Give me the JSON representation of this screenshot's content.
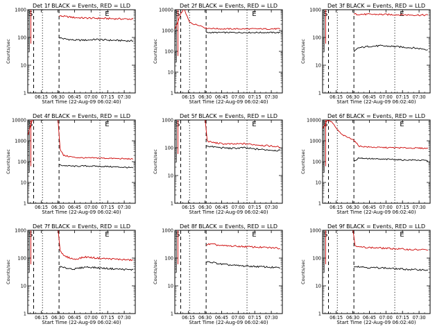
{
  "figure": {
    "colors": {
      "events": "#000000",
      "lld": "#cc0000",
      "axes": "#000000"
    }
  },
  "chart_data": [
    {
      "type": "line",
      "title": "Det 1f BLACK = Events, RED = LLD",
      "ylabel": "Counts/sec",
      "xlabel": "Start Time (22-Aug-09 06:02:40)",
      "xlim": [
        "06:02:40",
        "07:40:00"
      ],
      "ylim": [
        1,
        1000
      ],
      "yscale": "log",
      "xtick_labels": [
        "06:15",
        "06:30",
        "06:45",
        "07:00",
        "07:15",
        "07:30"
      ],
      "ytick_labels": [
        "1",
        "10",
        "100",
        "1000"
      ],
      "markers": {
        "s_label": "S",
        "e_label": "E"
      },
      "series": [
        {
          "role": "events",
          "x": [
            "06:31:00",
            "06:35:00",
            "06:45:00",
            "06:55:00",
            "07:05:00",
            "07:15:00",
            "07:25:00",
            "07:35:00",
            "07:38:00"
          ],
          "y": [
            100,
            90,
            80,
            80,
            85,
            80,
            78,
            75,
            75
          ]
        },
        {
          "role": "lld",
          "x": [
            "06:31:00",
            "06:35:00",
            "06:45:00",
            "06:55:00",
            "07:05:00",
            "07:15:00",
            "07:25:00",
            "07:35:00",
            "07:38:00"
          ],
          "y": [
            600,
            580,
            520,
            500,
            490,
            480,
            470,
            460,
            460
          ]
        }
      ]
    },
    {
      "type": "line",
      "title": "Det 2f BLACK = Events, RED = LLD",
      "ylabel": "Counts/sec",
      "xlabel": "Start Time (22-Aug-09 06:02:40)",
      "xlim": [
        "06:02:40",
        "07:40:00"
      ],
      "ylim": [
        1,
        10000
      ],
      "yscale": "log",
      "xtick_labels": [
        "06:15",
        "06:30",
        "06:45",
        "07:00",
        "07:15",
        "07:30"
      ],
      "ytick_labels": [
        "1",
        "10",
        "100",
        "1000",
        "10000"
      ],
      "markers": {
        "s_label": "S",
        "e_label": "E"
      },
      "series": [
        {
          "role": "events",
          "x": [
            "06:31:00",
            "06:45:00",
            "07:00:00",
            "07:15:00",
            "07:30:00",
            "07:38:00"
          ],
          "y": [
            800,
            800,
            800,
            800,
            800,
            800
          ]
        },
        {
          "role": "lld",
          "x": [
            "06:03:00",
            "06:08:00",
            "06:11:00",
            "06:13:00",
            "06:16:00",
            "06:20:00",
            "06:25:00",
            "06:31:00",
            "06:45:00",
            "07:00:00",
            "07:15:00",
            "07:30:00",
            "07:38:00"
          ],
          "y": [
            1200,
            6000,
            12000,
            6000,
            2500,
            2000,
            1800,
            1300,
            1200,
            1200,
            1200,
            1200,
            1200
          ]
        }
      ]
    },
    {
      "type": "line",
      "title": "Det 3f BLACK = Events, RED = LLD",
      "ylabel": "Counts/sec",
      "xlabel": "Start Time (22-Aug-09 06:02:40)",
      "xlim": [
        "06:02:40",
        "07:40:00"
      ],
      "ylim": [
        1,
        1000
      ],
      "yscale": "log",
      "xtick_labels": [
        "06:15",
        "06:30",
        "06:45",
        "07:00",
        "07:15",
        "07:30"
      ],
      "ytick_labels": [
        "1",
        "10",
        "100",
        "1000"
      ],
      "markers": {
        "s_label": "S",
        "e_label": "E"
      },
      "series": [
        {
          "role": "events",
          "x": [
            "06:31:00",
            "06:35:00",
            "06:45:00",
            "06:55:00",
            "07:05:00",
            "07:15:00",
            "07:25:00",
            "07:35:00",
            "07:38:00"
          ],
          "y": [
            30,
            42,
            48,
            50,
            48,
            45,
            42,
            38,
            36
          ]
        },
        {
          "role": "lld",
          "x": [
            "06:31:00",
            "06:40:00",
            "06:50:00",
            "07:00:00",
            "07:10:00",
            "07:20:00",
            "07:30:00",
            "07:38:00"
          ],
          "y": [
            700,
            680,
            680,
            670,
            660,
            650,
            640,
            640
          ]
        }
      ]
    },
    {
      "type": "line",
      "title": "Det 4f BLACK = Events, RED = LLD",
      "ylabel": "Counts/sec",
      "xlabel": "Start Time (22-Aug-09 06:02:40)",
      "xlim": [
        "06:02:40",
        "07:40:00"
      ],
      "ylim": [
        1,
        10000
      ],
      "yscale": "log",
      "xtick_labels": [
        "06:15",
        "06:30",
        "06:45",
        "07:00",
        "07:15",
        "07:30"
      ],
      "ytick_labels": [
        "1",
        "10",
        "100",
        "1000",
        "10000"
      ],
      "markers": {
        "s_label": "S",
        "e_label": "E"
      },
      "series": [
        {
          "role": "events",
          "x": [
            "06:31:00",
            "06:35:00",
            "06:45:00",
            "06:55:00",
            "07:05:00",
            "07:15:00",
            "07:25:00",
            "07:35:00",
            "07:38:00"
          ],
          "y": [
            70,
            65,
            60,
            62,
            60,
            58,
            55,
            52,
            50
          ]
        },
        {
          "role": "lld",
          "x": [
            "06:03:00",
            "06:06:00",
            "06:09:00",
            "06:30:00",
            "06:32:00",
            "06:35:00",
            "06:45:00",
            "06:55:00",
            "07:05:00",
            "07:15:00",
            "07:25:00",
            "07:35:00",
            "07:38:00"
          ],
          "y": [
            2000,
            8000,
            12000,
            12000,
            400,
            200,
            160,
            150,
            150,
            145,
            140,
            135,
            130
          ]
        }
      ]
    },
    {
      "type": "line",
      "title": "Det 5f BLACK = Events, RED = LLD",
      "ylabel": "Counts/sec",
      "xlabel": "Start Time (22-Aug-09 06:02:40)",
      "xlim": [
        "06:02:40",
        "07:40:00"
      ],
      "ylim": [
        1,
        1000
      ],
      "yscale": "log",
      "xtick_labels": [
        "06:15",
        "06:30",
        "06:45",
        "07:00",
        "07:15",
        "07:30"
      ],
      "ytick_labels": [
        "1",
        "10",
        "100",
        "1000"
      ],
      "markers": {
        "s_label": "S",
        "e_label": "E"
      },
      "series": [
        {
          "role": "events",
          "x": [
            "06:31:00",
            "06:35:00",
            "06:45:00",
            "06:55:00",
            "07:05:00",
            "07:15:00",
            "07:25:00",
            "07:35:00",
            "07:38:00"
          ],
          "y": [
            120,
            110,
            100,
            95,
            100,
            90,
            85,
            80,
            80
          ]
        },
        {
          "role": "lld",
          "x": [
            "06:30:00",
            "06:32:00",
            "06:35:00",
            "06:45:00",
            "06:55:00",
            "07:05:00",
            "07:15:00",
            "07:25:00",
            "07:35:00",
            "07:38:00"
          ],
          "y": [
            1200,
            180,
            160,
            140,
            135,
            140,
            130,
            120,
            110,
            105
          ]
        }
      ]
    },
    {
      "type": "line",
      "title": "Det 6f BLACK = Events, RED = LLD",
      "ylabel": "Counts/sec",
      "xlabel": "Start Time (22-Aug-09 06:02:40)",
      "xlim": [
        "06:02:40",
        "07:40:00"
      ],
      "ylim": [
        1,
        10000
      ],
      "yscale": "log",
      "xtick_labels": [
        "06:15",
        "06:30",
        "06:45",
        "07:00",
        "07:15",
        "07:30"
      ],
      "ytick_labels": [
        "1",
        "10",
        "100",
        "1000",
        "10000"
      ],
      "markers": {
        "s_label": "S",
        "e_label": "E"
      },
      "series": [
        {
          "role": "events",
          "x": [
            "06:31:00",
            "06:35:00",
            "06:45:00",
            "06:55:00",
            "07:05:00",
            "07:15:00",
            "07:25:00",
            "07:35:00",
            "07:38:00"
          ],
          "y": [
            100,
            150,
            140,
            130,
            130,
            120,
            120,
            115,
            110
          ]
        },
        {
          "role": "lld",
          "x": [
            "06:03:00",
            "06:07:00",
            "06:11:00",
            "06:15:00",
            "06:20:00",
            "06:25:00",
            "06:30:00",
            "06:33:00",
            "06:36:00",
            "06:45:00",
            "06:55:00",
            "07:05:00",
            "07:15:00",
            "07:25:00",
            "07:35:00",
            "07:38:00"
          ],
          "y": [
            4000,
            10000,
            8000,
            4000,
            2000,
            1500,
            1200,
            800,
            550,
            500,
            480,
            470,
            460,
            450,
            440,
            430
          ]
        }
      ]
    },
    {
      "type": "line",
      "title": "Det 7f BLACK = Events, RED = LLD",
      "ylabel": "Counts/sec",
      "xlabel": "Start Time (22-Aug-09 06:02:40)",
      "xlim": [
        "06:02:40",
        "07:40:00"
      ],
      "ylim": [
        1,
        1000
      ],
      "yscale": "log",
      "xtick_labels": [
        "06:15",
        "06:30",
        "06:45",
        "07:00",
        "07:15",
        "07:30"
      ],
      "ytick_labels": [
        "1",
        "10",
        "100",
        "1000"
      ],
      "markers": {
        "s_label": "S",
        "e_label": "E"
      },
      "series": [
        {
          "role": "events",
          "x": [
            "06:31:00",
            "06:35:00",
            "06:45:00",
            "06:55:00",
            "07:05:00",
            "07:15:00",
            "07:25:00",
            "07:35:00",
            "07:38:00"
          ],
          "y": [
            50,
            45,
            40,
            48,
            45,
            42,
            40,
            38,
            38
          ]
        },
        {
          "role": "lld",
          "x": [
            "06:30:00",
            "06:32:00",
            "06:35:00",
            "06:45:00",
            "06:55:00",
            "07:05:00",
            "07:15:00",
            "07:25:00",
            "07:35:00",
            "07:38:00"
          ],
          "y": [
            1200,
            200,
            120,
            90,
            110,
            100,
            95,
            90,
            85,
            85
          ]
        }
      ]
    },
    {
      "type": "line",
      "title": "Det 8f BLACK = Events, RED = LLD",
      "ylabel": "Counts/sec",
      "xlabel": "Start Time (22-Aug-09 06:02:40)",
      "xlim": [
        "06:02:40",
        "07:40:00"
      ],
      "ylim": [
        1,
        1000
      ],
      "yscale": "log",
      "xtick_labels": [
        "06:15",
        "06:30",
        "06:45",
        "07:00",
        "07:15",
        "07:30"
      ],
      "ytick_labels": [
        "1",
        "10",
        "100",
        "1000"
      ],
      "markers": {
        "s_label": "S",
        "e_label": "E"
      },
      "series": [
        {
          "role": "events",
          "x": [
            "06:31:00",
            "06:35:00",
            "06:45:00",
            "06:55:00",
            "07:05:00",
            "07:15:00",
            "07:25:00",
            "07:35:00",
            "07:38:00"
          ],
          "y": [
            70,
            72,
            60,
            55,
            52,
            50,
            48,
            45,
            45
          ]
        },
        {
          "role": "lld",
          "x": [
            "06:31:00",
            "06:35:00",
            "06:45:00",
            "06:55:00",
            "07:05:00",
            "07:15:00",
            "07:25:00",
            "07:35:00",
            "07:38:00"
          ],
          "y": [
            300,
            320,
            280,
            270,
            260,
            250,
            240,
            230,
            220
          ]
        }
      ]
    },
    {
      "type": "line",
      "title": "Det 9f BLACK = Events, RED = LLD",
      "ylabel": "Counts/sec",
      "xlabel": "Start Time (22-Aug-09 06:02:40)",
      "xlim": [
        "06:02:40",
        "07:40:00"
      ],
      "ylim": [
        1,
        1000
      ],
      "yscale": "log",
      "xtick_labels": [
        "06:15",
        "06:30",
        "06:45",
        "07:00",
        "07:15",
        "07:30"
      ],
      "ytick_labels": [
        "1",
        "10",
        "100",
        "1000"
      ],
      "markers": {
        "s_label": "S",
        "e_label": "E"
      },
      "series": [
        {
          "role": "events",
          "x": [
            "06:31:00",
            "06:35:00",
            "06:45:00",
            "06:55:00",
            "07:05:00",
            "07:15:00",
            "07:25:00",
            "07:35:00",
            "07:38:00"
          ],
          "y": [
            50,
            50,
            45,
            45,
            42,
            40,
            38,
            38,
            36
          ]
        },
        {
          "role": "lld",
          "x": [
            "06:30:00",
            "06:32:00",
            "06:35:00",
            "06:45:00",
            "06:55:00",
            "07:05:00",
            "07:15:00",
            "07:25:00",
            "07:35:00",
            "07:38:00"
          ],
          "y": [
            1200,
            300,
            250,
            240,
            230,
            220,
            210,
            200,
            200,
            195
          ]
        }
      ]
    }
  ]
}
